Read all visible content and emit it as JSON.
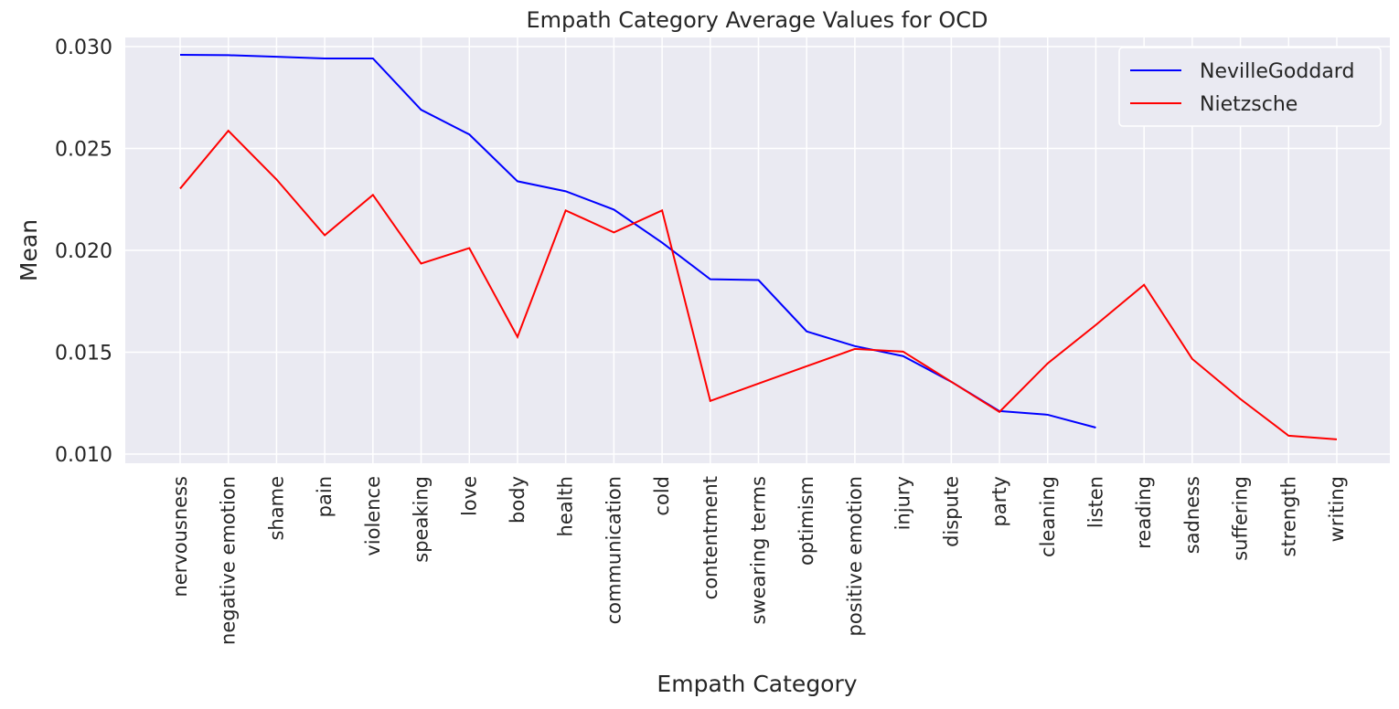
{
  "chart_data": {
    "type": "line",
    "title": "Empath Category Average Values for OCD",
    "x_label": "Empath Category",
    "y_label": "Mean",
    "categories": [
      "nervousness",
      "negative emotion",
      "shame",
      "pain",
      "violence",
      "speaking",
      "love",
      "body",
      "health",
      "communication",
      "cold",
      "contentment",
      "swearing terms",
      "optimism",
      "positive emotion",
      "injury",
      "dispute",
      "party",
      "cleaning",
      "listen",
      "reading",
      "sadness",
      "suffering",
      "strength",
      "writing"
    ],
    "series": [
      {
        "name": "NevilleGoddard",
        "color": "#0000ff",
        "values": [
          0.0296,
          0.02958,
          0.0295,
          0.02942,
          0.02942,
          0.0269,
          0.02569,
          0.02339,
          0.0229,
          0.022,
          0.02038,
          0.01858,
          0.01854,
          0.01602,
          0.0153,
          0.01481,
          0.01355,
          0.01211,
          0.01193,
          0.0113,
          null,
          null,
          null,
          null,
          null
        ]
      },
      {
        "name": "Nietzsche",
        "color": "#ff0000",
        "values": [
          0.02303,
          0.02587,
          0.02348,
          0.02074,
          0.02272,
          0.01935,
          0.02011,
          0.01575,
          0.02196,
          0.02088,
          0.02196,
          0.01261,
          0.01346,
          0.01431,
          0.01516,
          0.01503,
          0.01355,
          0.01207,
          0.01445,
          0.01634,
          0.01831,
          0.01467,
          0.0127,
          0.0109,
          0.01072
        ]
      }
    ],
    "ylim": [
      0.00955,
      0.03045
    ],
    "yticks": [
      {
        "value": 0.01,
        "label": "0.010"
      },
      0.015,
      {
        "value": 0.02,
        "label": "0.020"
      },
      0.025,
      {
        "value": 0.03,
        "label": "0.030"
      }
    ],
    "grid": true,
    "legend": "upper right"
  }
}
